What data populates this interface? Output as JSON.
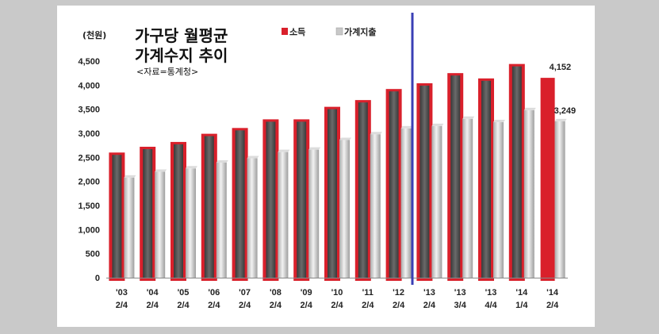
{
  "chart_data": {
    "type": "bar",
    "title_line1": "가구당 월평균",
    "title_line2": "가계수지 추이",
    "subtitle": "<자료=통계청>",
    "unit_label": "(천원)",
    "ylim": [
      0,
      4500
    ],
    "yticks": [
      "0",
      "500",
      "1,000",
      "1,500",
      "2,000",
      "2,500",
      "3,000",
      "3,500",
      "4,000",
      "4,500"
    ],
    "ytick_values": [
      0,
      500,
      1000,
      1500,
      2000,
      2500,
      3000,
      3500,
      4000,
      4500
    ],
    "categories": [
      [
        "'03",
        "2/4"
      ],
      [
        "'04",
        "2/4"
      ],
      [
        "'05",
        "2/4"
      ],
      [
        "'06",
        "2/4"
      ],
      [
        "'07",
        "2/4"
      ],
      [
        "'08",
        "2/4"
      ],
      [
        "'09",
        "2/4"
      ],
      [
        "'10",
        "2/4"
      ],
      [
        "'11",
        "2/4"
      ],
      [
        "'12",
        "2/4"
      ],
      [
        "'13",
        "2/4"
      ],
      [
        "'13",
        "3/4"
      ],
      [
        "'13",
        "4/4"
      ],
      [
        "'14",
        "1/4"
      ],
      [
        "'14",
        "2/4"
      ]
    ],
    "series": [
      {
        "name": "소득",
        "color": "#d9202b",
        "values": [
          2600,
          2720,
          2820,
          2990,
          3110,
          3290,
          3290,
          3550,
          3690,
          3920,
          4040,
          4250,
          4140,
          4440,
          4152
        ]
      },
      {
        "name": "가계지출",
        "color": "#bdbdbd",
        "values": [
          2080,
          2200,
          2270,
          2390,
          2480,
          2610,
          2660,
          2860,
          2980,
          3100,
          3150,
          3300,
          3230,
          3480,
          3249
        ]
      }
    ],
    "data_labels": [
      {
        "series": 0,
        "index": 14,
        "text": "4,152"
      },
      {
        "series": 1,
        "index": 14,
        "text": "3,249"
      }
    ],
    "divider_after_index": 9,
    "divider_color": "#3a3fb5",
    "legend_position": "top"
  }
}
